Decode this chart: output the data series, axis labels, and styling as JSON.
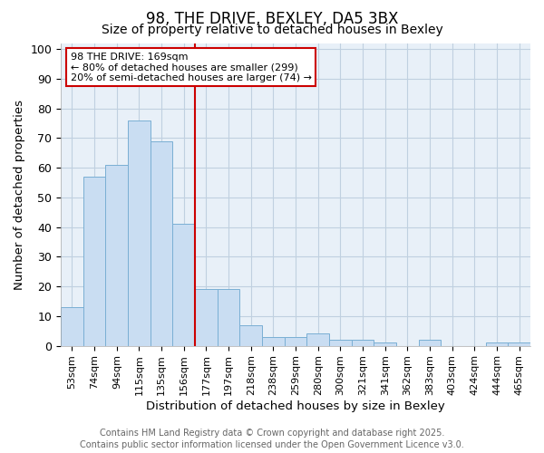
{
  "title": "98, THE DRIVE, BEXLEY, DA5 3BX",
  "subtitle": "Size of property relative to detached houses in Bexley",
  "xlabel": "Distribution of detached houses by size in Bexley",
  "ylabel": "Number of detached properties",
  "bar_labels": [
    "53sqm",
    "74sqm",
    "94sqm",
    "115sqm",
    "135sqm",
    "156sqm",
    "177sqm",
    "197sqm",
    "218sqm",
    "238sqm",
    "259sqm",
    "280sqm",
    "300sqm",
    "321sqm",
    "341sqm",
    "362sqm",
    "383sqm",
    "403sqm",
    "424sqm",
    "444sqm",
    "465sqm"
  ],
  "bar_values": [
    13,
    57,
    61,
    76,
    69,
    41,
    19,
    19,
    7,
    3,
    3,
    4,
    2,
    2,
    1,
    0,
    2,
    0,
    0,
    1,
    1
  ],
  "bar_color": "#c9ddf2",
  "bar_edge_color": "#7aafd4",
  "vline_color": "#cc0000",
  "vline_bar_index": 6,
  "annotation_text": "98 THE DRIVE: 169sqm\n← 80% of detached houses are smaller (299)\n20% of semi-detached houses are larger (74) →",
  "annotation_box_color": "#ffffff",
  "annotation_box_edge": "#cc0000",
  "ylim_max": 102,
  "yticks": [
    0,
    10,
    20,
    30,
    40,
    50,
    60,
    70,
    80,
    90,
    100
  ],
  "grid_color": "#c0d0e0",
  "background_color": "#ffffff",
  "plot_bg_color": "#e8f0f8",
  "footer_line1": "Contains HM Land Registry data © Crown copyright and database right 2025.",
  "footer_line2": "Contains public sector information licensed under the Open Government Licence v3.0.",
  "title_fontsize": 12,
  "subtitle_fontsize": 10,
  "axis_label_fontsize": 9.5,
  "tick_fontsize": 8,
  "footer_fontsize": 7,
  "ann_fontsize": 8
}
